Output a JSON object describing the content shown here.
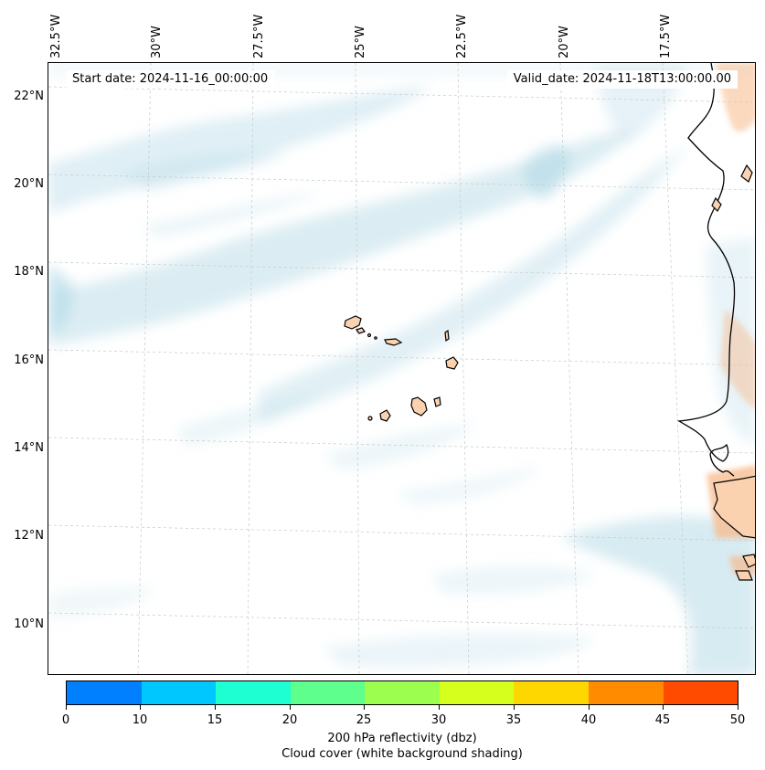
{
  "map": {
    "start_date": "Start date: 2024-11-16_00:00:00",
    "valid_date": "Valid_date: 2024-11-18T13:00:00.00",
    "lon_labels": [
      "32.5°W",
      "30°W",
      "27.5°W",
      "25°W",
      "22.5°W",
      "20°W",
      "17.5°W"
    ],
    "lat_labels": [
      "22°N",
      "20°N",
      "18°N",
      "16°N",
      "14°N",
      "12°N",
      "10°N"
    ],
    "colors": {
      "cloud": "#b7dbe8",
      "land_heat": "#f7b98a",
      "coastline": "#000000",
      "gridline": "#c8c8c8"
    }
  },
  "colorbar": {
    "ticks": [
      "0",
      "10",
      "15",
      "20",
      "25",
      "30",
      "35",
      "40",
      "45",
      "50"
    ],
    "colors": [
      "#0080ff",
      "#00c8ff",
      "#1effd2",
      "#5eff8c",
      "#9cff50",
      "#d7ff1e",
      "#ffd700",
      "#ff8c00",
      "#ff4b00"
    ],
    "label_line1": "200 hPa reflectivity (dbz)",
    "label_line2": "Cloud cover (white background shading)"
  }
}
